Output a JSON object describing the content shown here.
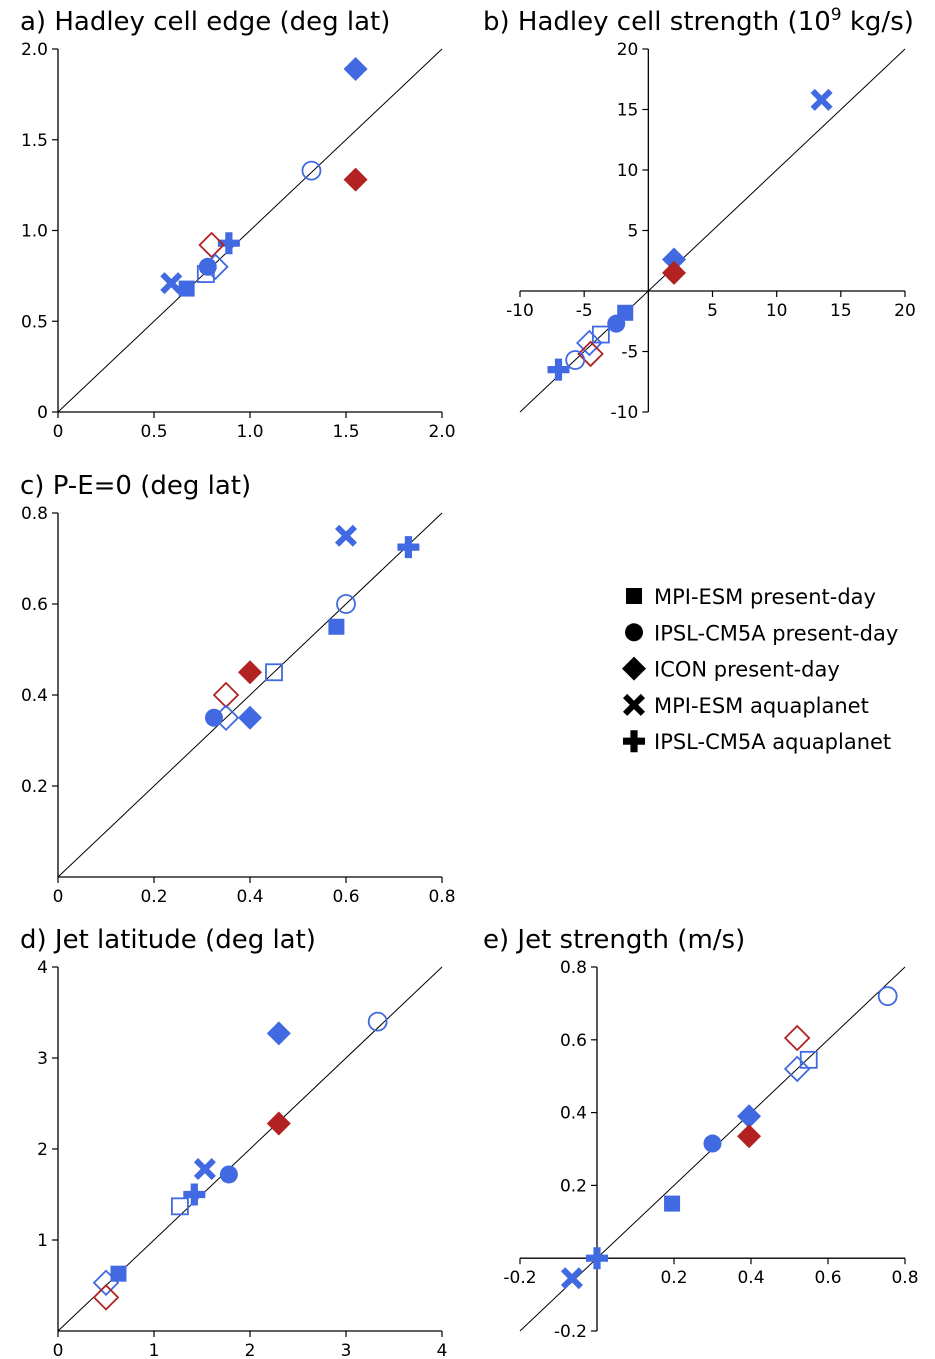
{
  "figure": {
    "legend": [
      {
        "label": "MPI-ESM present-day",
        "marker": "square"
      },
      {
        "label": "IPSL-CM5A present-day",
        "marker": "circle"
      },
      {
        "label": "ICON present-day",
        "marker": "diamond"
      },
      {
        "label": "MPI-ESM aquaplanet",
        "marker": "x"
      },
      {
        "label": "IPSL-CM5A aquaplanet",
        "marker": "plus"
      }
    ],
    "colors": {
      "blue": "#4169e1",
      "red": "#b22222",
      "black": "#000000"
    }
  },
  "chart_data": [
    {
      "id": "a",
      "type": "scatter",
      "title": "a) Hadley cell edge (deg lat)",
      "xlim": [
        0,
        2.0
      ],
      "ylim": [
        0,
        2.0
      ],
      "xticks": [
        "0",
        "0.5",
        "1.0",
        "1.5",
        "2.0"
      ],
      "yticks": [
        "0",
        "0.5",
        "1.0",
        "1.5",
        "2.0"
      ],
      "xtick_values": [
        0,
        0.5,
        1.0,
        1.5,
        2.0
      ],
      "ytick_values": [
        0,
        0.5,
        1.0,
        1.5,
        2.0
      ],
      "spines": "left-bottom",
      "one_to_one_line": true,
      "grid": false,
      "points": [
        {
          "marker": "diamond",
          "fill": true,
          "color": "blue",
          "x": 1.55,
          "y": 1.89
        },
        {
          "marker": "diamond",
          "fill": true,
          "color": "red",
          "x": 1.55,
          "y": 1.28
        },
        {
          "marker": "circle",
          "fill": false,
          "color": "blue",
          "x": 1.32,
          "y": 1.33
        },
        {
          "marker": "plus",
          "fill": true,
          "color": "blue",
          "x": 0.89,
          "y": 0.93
        },
        {
          "marker": "diamond",
          "fill": false,
          "color": "red",
          "x": 0.8,
          "y": 0.92
        },
        {
          "marker": "diamond",
          "fill": false,
          "color": "blue",
          "x": 0.82,
          "y": 0.8
        },
        {
          "marker": "circle",
          "fill": true,
          "color": "blue",
          "x": 0.78,
          "y": 0.8
        },
        {
          "marker": "square",
          "fill": false,
          "color": "blue",
          "x": 0.77,
          "y": 0.76
        },
        {
          "marker": "x",
          "fill": true,
          "color": "blue",
          "x": 0.59,
          "y": 0.71
        },
        {
          "marker": "square",
          "fill": true,
          "color": "blue",
          "x": 0.67,
          "y": 0.68
        }
      ]
    },
    {
      "id": "b",
      "type": "scatter",
      "title": "b) Hadley cell strength (10",
      "title_sup": "9",
      "title_tail": " kg/s)",
      "xlim": [
        -10,
        20
      ],
      "ylim": [
        -10,
        20
      ],
      "xticks": [
        "-10",
        "-5",
        "5",
        "10",
        "15",
        "20"
      ],
      "yticks": [
        "-10",
        "-5",
        "5",
        "10",
        "15",
        "20"
      ],
      "xtick_values": [
        -10,
        -5,
        5,
        10,
        15,
        20
      ],
      "ytick_values": [
        -10,
        -5,
        5,
        10,
        15,
        20
      ],
      "spines": "center",
      "one_to_one_line": true,
      "grid": false,
      "points": [
        {
          "marker": "x",
          "fill": true,
          "color": "blue",
          "x": 13.5,
          "y": 15.8
        },
        {
          "marker": "diamond",
          "fill": true,
          "color": "blue",
          "x": 2.0,
          "y": 2.6
        },
        {
          "marker": "diamond",
          "fill": true,
          "color": "red",
          "x": 2.0,
          "y": 1.5
        },
        {
          "marker": "square",
          "fill": true,
          "color": "blue",
          "x": -1.8,
          "y": -1.8
        },
        {
          "marker": "circle",
          "fill": true,
          "color": "blue",
          "x": -2.5,
          "y": -2.7
        },
        {
          "marker": "square",
          "fill": false,
          "color": "blue",
          "x": -3.7,
          "y": -3.6
        },
        {
          "marker": "diamond",
          "fill": false,
          "color": "blue",
          "x": -4.6,
          "y": -4.3
        },
        {
          "marker": "diamond",
          "fill": false,
          "color": "red",
          "x": -4.5,
          "y": -5.2
        },
        {
          "marker": "circle",
          "fill": false,
          "color": "blue",
          "x": -5.7,
          "y": -5.7
        },
        {
          "marker": "plus",
          "fill": true,
          "color": "blue",
          "x": -7.0,
          "y": -6.5
        }
      ]
    },
    {
      "id": "c",
      "type": "scatter",
      "title": "c) P-E=0 (deg lat)",
      "xlim": [
        0,
        0.8
      ],
      "ylim": [
        0,
        0.8
      ],
      "xticks": [
        "0",
        "0.2",
        "0.4",
        "0.6",
        "0.8"
      ],
      "yticks": [
        "0.2",
        "0.4",
        "0.6",
        "0.8"
      ],
      "xtick_values": [
        0,
        0.2,
        0.4,
        0.6,
        0.8
      ],
      "ytick_values": [
        0.2,
        0.4,
        0.6,
        0.8
      ],
      "spines": "left-bottom",
      "one_to_one_line": true,
      "grid": false,
      "points": [
        {
          "marker": "x",
          "fill": true,
          "color": "blue",
          "x": 0.6,
          "y": 0.75
        },
        {
          "marker": "plus",
          "fill": true,
          "color": "blue",
          "x": 0.73,
          "y": 0.725
        },
        {
          "marker": "circle",
          "fill": false,
          "color": "blue",
          "x": 0.6,
          "y": 0.6
        },
        {
          "marker": "square",
          "fill": true,
          "color": "blue",
          "x": 0.58,
          "y": 0.55
        },
        {
          "marker": "square",
          "fill": false,
          "color": "blue",
          "x": 0.45,
          "y": 0.45
        },
        {
          "marker": "diamond",
          "fill": true,
          "color": "red",
          "x": 0.4,
          "y": 0.45
        },
        {
          "marker": "diamond",
          "fill": false,
          "color": "red",
          "x": 0.35,
          "y": 0.4
        },
        {
          "marker": "diamond",
          "fill": false,
          "color": "blue",
          "x": 0.35,
          "y": 0.35
        },
        {
          "marker": "circle",
          "fill": true,
          "color": "blue",
          "x": 0.325,
          "y": 0.35
        },
        {
          "marker": "diamond",
          "fill": true,
          "color": "blue",
          "x": 0.4,
          "y": 0.35
        }
      ]
    },
    {
      "id": "d",
      "type": "scatter",
      "title": "d) Jet latitude (deg lat)",
      "xlim": [
        0,
        4
      ],
      "ylim": [
        0,
        4
      ],
      "xticks": [
        "0",
        "1",
        "2",
        "3",
        "4"
      ],
      "yticks": [
        "1",
        "2",
        "3",
        "4"
      ],
      "xtick_values": [
        0,
        1,
        2,
        3,
        4
      ],
      "ytick_values": [
        1,
        2,
        3,
        4
      ],
      "spines": "left-bottom",
      "one_to_one_line": true,
      "grid": false,
      "points": [
        {
          "marker": "circle",
          "fill": false,
          "color": "blue",
          "x": 3.33,
          "y": 3.4
        },
        {
          "marker": "diamond",
          "fill": true,
          "color": "blue",
          "x": 2.3,
          "y": 3.27
        },
        {
          "marker": "diamond",
          "fill": true,
          "color": "red",
          "x": 2.3,
          "y": 2.28
        },
        {
          "marker": "x",
          "fill": true,
          "color": "blue",
          "x": 1.53,
          "y": 1.78
        },
        {
          "marker": "circle",
          "fill": true,
          "color": "blue",
          "x": 1.78,
          "y": 1.72
        },
        {
          "marker": "plus",
          "fill": true,
          "color": "blue",
          "x": 1.42,
          "y": 1.5
        },
        {
          "marker": "square",
          "fill": false,
          "color": "blue",
          "x": 1.27,
          "y": 1.37
        },
        {
          "marker": "square",
          "fill": true,
          "color": "blue",
          "x": 0.63,
          "y": 0.63
        },
        {
          "marker": "diamond",
          "fill": false,
          "color": "blue",
          "x": 0.5,
          "y": 0.53
        },
        {
          "marker": "diamond",
          "fill": false,
          "color": "red",
          "x": 0.5,
          "y": 0.37
        }
      ]
    },
    {
      "id": "e",
      "type": "scatter",
      "title": "e) Jet strength (m/s)",
      "xlim": [
        -0.2,
        0.8
      ],
      "ylim": [
        -0.2,
        0.8
      ],
      "xticks": [
        "-0.2",
        "0.2",
        "0.4",
        "0.6",
        "0.8"
      ],
      "yticks": [
        "-0.2",
        "0.2",
        "0.4",
        "0.6",
        "0.8"
      ],
      "xtick_values": [
        -0.2,
        0.2,
        0.4,
        0.6,
        0.8
      ],
      "ytick_values": [
        -0.2,
        0.2,
        0.4,
        0.6,
        0.8
      ],
      "spines": "center",
      "one_to_one_line": true,
      "grid": false,
      "points": [
        {
          "marker": "circle",
          "fill": false,
          "color": "blue",
          "x": 0.755,
          "y": 0.72
        },
        {
          "marker": "diamond",
          "fill": false,
          "color": "red",
          "x": 0.52,
          "y": 0.605
        },
        {
          "marker": "square",
          "fill": false,
          "color": "blue",
          "x": 0.55,
          "y": 0.545
        },
        {
          "marker": "diamond",
          "fill": false,
          "color": "blue",
          "x": 0.52,
          "y": 0.52
        },
        {
          "marker": "diamond",
          "fill": true,
          "color": "blue",
          "x": 0.395,
          "y": 0.39
        },
        {
          "marker": "diamond",
          "fill": true,
          "color": "red",
          "x": 0.395,
          "y": 0.335
        },
        {
          "marker": "circle",
          "fill": true,
          "color": "blue",
          "x": 0.3,
          "y": 0.315
        },
        {
          "marker": "square",
          "fill": true,
          "color": "blue",
          "x": 0.195,
          "y": 0.15
        },
        {
          "marker": "plus",
          "fill": true,
          "color": "blue",
          "x": 0.0,
          "y": 0.0
        },
        {
          "marker": "x",
          "fill": true,
          "color": "blue",
          "x": -0.065,
          "y": -0.055
        }
      ]
    }
  ]
}
